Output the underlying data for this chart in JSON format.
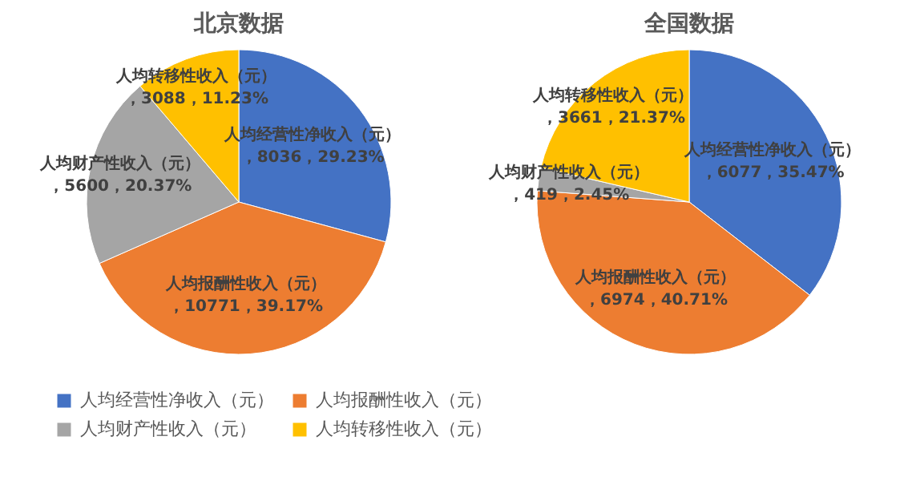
{
  "chart_data": [
    {
      "type": "pie",
      "title": "北京数据",
      "categories": [
        "人均经营性净收入（元）",
        "人均报酬性收入（元）",
        "人均财产性收入（元）",
        "人均转移性收入（元）"
      ],
      "values": [
        8036,
        10771,
        5600,
        3088
      ],
      "colors": [
        "#4472c4",
        "#ed7d31",
        "#a5a5a5",
        "#ffc000"
      ],
      "value_labels": [
        "，8036，29.23%",
        "，10771，39.17%",
        "，5600，20.37%",
        "，3088，11.23%"
      ],
      "legend": "bottom"
    },
    {
      "type": "pie",
      "title": "全国数据",
      "categories": [
        "人均经营性净收入（元）",
        "人均报酬性收入（元）",
        "人均财产性收入（元）",
        "人均转移性收入（元）"
      ],
      "values": [
        6077,
        6974,
        419,
        3661
      ],
      "colors": [
        "#4472c4",
        "#ed7d31",
        "#a5a5a5",
        "#ffc000"
      ],
      "value_labels": [
        "，6077，35.47%",
        "，6974，40.71%",
        "，419，2.45%",
        "，3661，21.37%"
      ]
    }
  ]
}
